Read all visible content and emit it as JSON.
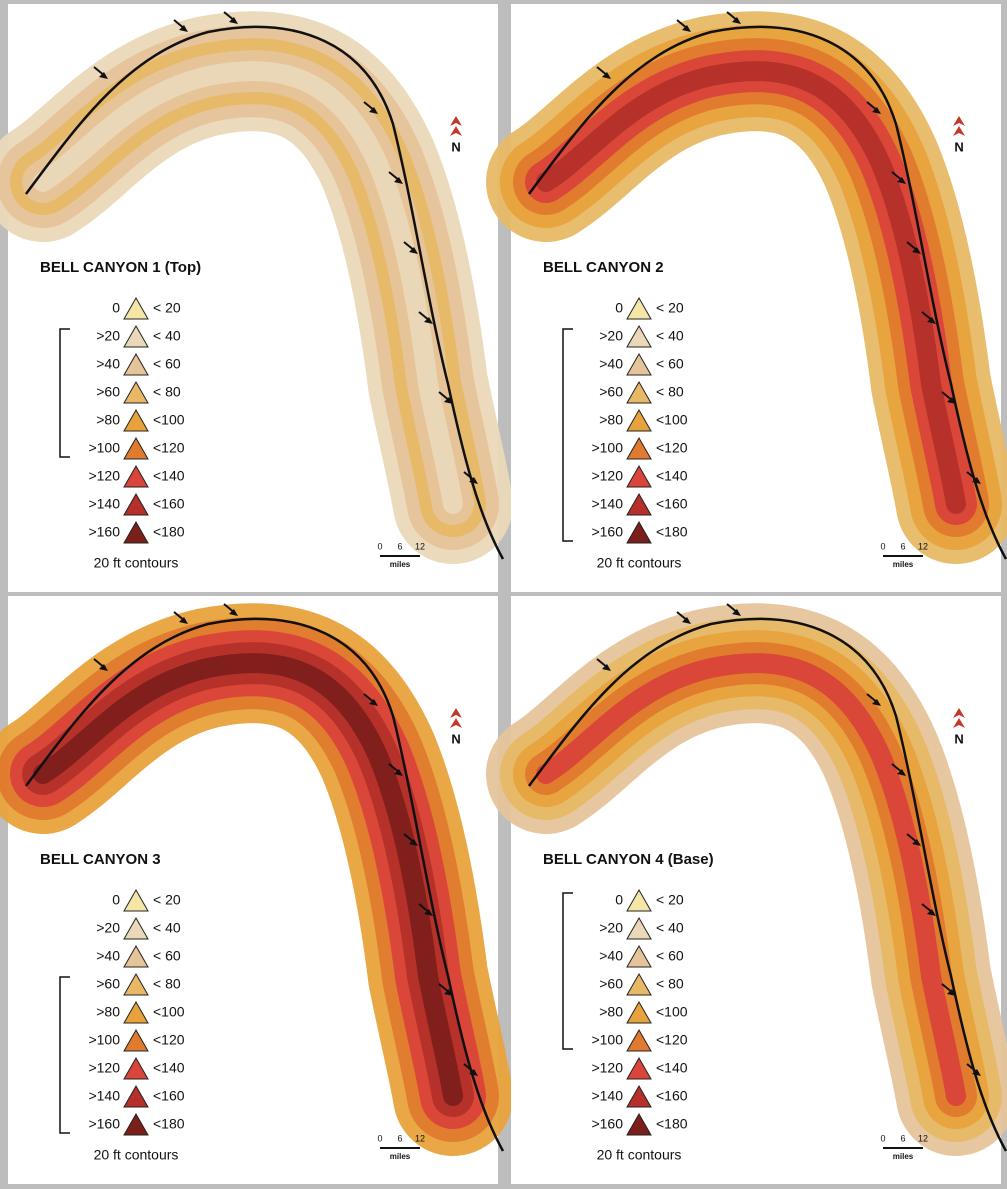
{
  "panels": [
    {
      "title": "BELL CANYON 1 (Top)",
      "legend": [
        {
          "from": "0",
          "to": "< 20",
          "color": "#f5e6a8"
        },
        {
          "from": ">20",
          "to": "< 40",
          "color": "#ead8b8"
        },
        {
          "from": ">40",
          "to": "< 60",
          "color": "#e6c49a"
        },
        {
          "from": ">60",
          "to": "< 80",
          "color": "#e7b966"
        },
        {
          "from": ">80",
          "to": "<100",
          "color": "#e8a23c"
        },
        {
          "from": ">100",
          "to": "<120",
          "color": "#e07a2e"
        },
        {
          "from": ">120",
          "to": "<140",
          "color": "#d9453a"
        },
        {
          "from": ">140",
          "to": "<160",
          "color": "#b5302a"
        },
        {
          "from": ">160",
          "to": "<180",
          "color": "#7c1f1a"
        }
      ],
      "contour_note": "20 ft contours",
      "scale": {
        "ticks": [
          "0",
          "6",
          "12"
        ],
        "unit": "miles"
      },
      "north": "N"
    },
    {
      "title": "BELL CANYON 2",
      "legend": [
        {
          "from": "0",
          "to": "< 20",
          "color": "#f5e6a8"
        },
        {
          "from": ">20",
          "to": "< 40",
          "color": "#ead8b8"
        },
        {
          "from": ">40",
          "to": "< 60",
          "color": "#e6c49a"
        },
        {
          "from": ">60",
          "to": "< 80",
          "color": "#e7b966"
        },
        {
          "from": ">80",
          "to": "<100",
          "color": "#e8a23c"
        },
        {
          "from": ">100",
          "to": "<120",
          "color": "#e07a2e"
        },
        {
          "from": ">120",
          "to": "<140",
          "color": "#d9453a"
        },
        {
          "from": ">140",
          "to": "<160",
          "color": "#b5302a"
        },
        {
          "from": ">160",
          "to": "<180",
          "color": "#7c1f1a"
        }
      ],
      "contour_note": "20 ft contours",
      "scale": {
        "ticks": [
          "0",
          "6",
          "12"
        ],
        "unit": "miles"
      },
      "north": "N"
    },
    {
      "title": "BELL CANYON 3",
      "legend": [
        {
          "from": "0",
          "to": "< 20",
          "color": "#f5e6a8"
        },
        {
          "from": ">20",
          "to": "< 40",
          "color": "#ead8b8"
        },
        {
          "from": ">40",
          "to": "< 60",
          "color": "#e6c49a"
        },
        {
          "from": ">60",
          "to": "< 80",
          "color": "#e7b966"
        },
        {
          "from": ">80",
          "to": "<100",
          "color": "#e8a23c"
        },
        {
          "from": ">100",
          "to": "<120",
          "color": "#e07a2e"
        },
        {
          "from": ">120",
          "to": "<140",
          "color": "#d9453a"
        },
        {
          "from": ">140",
          "to": "<160",
          "color": "#b5302a"
        },
        {
          "from": ">160",
          "to": "<180",
          "color": "#7c1f1a"
        }
      ],
      "contour_note": "20 ft contours",
      "scale": {
        "ticks": [
          "0",
          "6",
          "12"
        ],
        "unit": "miles"
      },
      "north": "N"
    },
    {
      "title": "BELL CANYON 4 (Base)",
      "legend": [
        {
          "from": "0",
          "to": "< 20",
          "color": "#f5e6a8"
        },
        {
          "from": ">20",
          "to": "< 40",
          "color": "#ead8b8"
        },
        {
          "from": ">40",
          "to": "< 60",
          "color": "#e6c49a"
        },
        {
          "from": ">60",
          "to": "< 80",
          "color": "#e7b966"
        },
        {
          "from": ">80",
          "to": "<100",
          "color": "#e8a23c"
        },
        {
          "from": ">100",
          "to": "<120",
          "color": "#e07a2e"
        },
        {
          "from": ">120",
          "to": "<140",
          "color": "#d9453a"
        },
        {
          "from": ">140",
          "to": "<160",
          "color": "#b5302a"
        },
        {
          "from": ">160",
          "to": "<180",
          "color": "#7c1f1a"
        }
      ],
      "contour_note": "20 ft contours",
      "scale": {
        "ticks": [
          "0",
          "6",
          "12"
        ],
        "unit": "miles"
      },
      "north": "N"
    }
  ]
}
